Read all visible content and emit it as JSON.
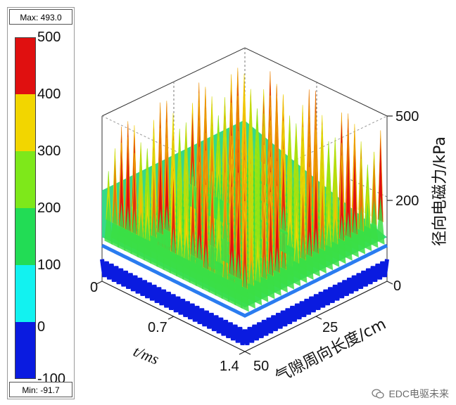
{
  "legend": {
    "max_label": "Max: 493.0",
    "min_label": "Min: -91.7",
    "ticks": [
      "500",
      "400",
      "300",
      "200",
      "100",
      "0",
      "-100"
    ],
    "colors": [
      "#e01010",
      "#f2d600",
      "#7ee81a",
      "#22dc55",
      "#12f2f0",
      "#0a1be0"
    ]
  },
  "chart_data": {
    "type": "surface3d",
    "title": "",
    "zlabel": "径向电磁力/kPa",
    "xlabel": "t/ms",
    "ylabel": "气隙周向长度/cm",
    "x_ticks": [
      "0",
      "0.7",
      "1.4"
    ],
    "y_ticks": [
      "0",
      "25",
      "50"
    ],
    "z_ticks": [
      "500",
      "200"
    ],
    "xlim": [
      0,
      1.4
    ],
    "ylim": [
      0,
      50
    ],
    "zlim": [
      -100,
      500
    ],
    "max": 493.0,
    "min": -91.7,
    "colormap": [
      {
        "from": 400,
        "to": 500,
        "color": "#e01010"
      },
      {
        "from": 300,
        "to": 400,
        "color": "#f2d600"
      },
      {
        "from": 200,
        "to": 300,
        "color": "#7ee81a"
      },
      {
        "from": 100,
        "to": 200,
        "color": "#22dc55"
      },
      {
        "from": 0,
        "to": 100,
        "color": "#12f2f0"
      },
      {
        "from": -100,
        "to": 0,
        "color": "#0a1be0"
      }
    ]
  },
  "watermark": {
    "text": "EDC电驱未来"
  }
}
